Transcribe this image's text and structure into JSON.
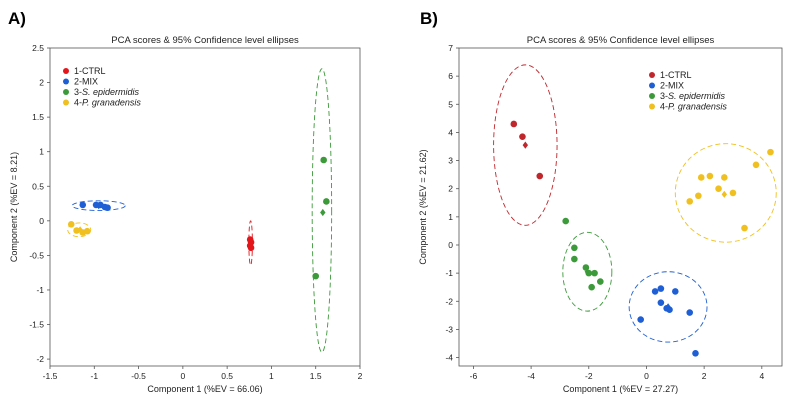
{
  "chart_data": [
    {
      "type": "scatter",
      "panel_label": "A)",
      "title": "PCA scores & 95% Confidence level ellipses",
      "xlabel": "Component 1 (%EV = 66.06)",
      "ylabel": "Component 2 (%EV = 8.21)",
      "xlim": [
        -1.5,
        2
      ],
      "ylim": [
        -2.1,
        2.5
      ],
      "xticks": [
        -1.5,
        -1,
        -0.5,
        0,
        0.5,
        1,
        1.5,
        2
      ],
      "yticks": [
        -2,
        -1.5,
        -1,
        -0.5,
        0,
        0.5,
        1,
        1.5,
        2,
        2.5
      ],
      "xtick_labels": [
        "-1.5",
        "-1",
        "-0.5",
        "0",
        "0.5",
        "1",
        "1.5",
        "2"
      ],
      "ytick_labels": [
        "-2",
        "-1.5",
        "-1",
        "-0.5",
        "0",
        "0.5",
        "1",
        "1.5",
        "2",
        "2.5"
      ],
      "grid": false,
      "legend_position": "top-left",
      "series": [
        {
          "name": "1-CTRL",
          "color": "#e3161c",
          "points": [
            [
              0.76,
              -0.27
            ],
            [
              0.77,
              -0.31
            ],
            [
              0.76,
              -0.36
            ],
            [
              0.77,
              -0.39
            ]
          ],
          "centroid": [
            0.765,
            -0.32
          ],
          "ellipse": {
            "cx": 0.765,
            "cy": -0.32,
            "rx": 0.02,
            "ry": 0.32,
            "angle": 0
          }
        },
        {
          "name": "2-MIX",
          "color": "#1f5fd6",
          "points": [
            [
              -1.13,
              0.23
            ],
            [
              -0.98,
              0.23
            ],
            [
              -0.93,
              0.23
            ],
            [
              -0.88,
              0.2
            ],
            [
              -0.85,
              0.19
            ]
          ],
          "centroid": [
            -0.95,
            0.22
          ],
          "ellipse": {
            "cx": -0.95,
            "cy": 0.22,
            "rx": 0.3,
            "ry": 0.07,
            "angle": 0
          }
        },
        {
          "name": "3-S. epidermidis",
          "color": "#3c9a3a",
          "points": [
            [
              1.59,
              0.88
            ],
            [
              1.62,
              0.28
            ],
            [
              1.5,
              -0.8
            ]
          ],
          "centroid": [
            1.58,
            0.12
          ],
          "ellipse": {
            "cx": 1.57,
            "cy": 0.15,
            "rx": 0.11,
            "ry": 2.05,
            "angle": 0
          }
        },
        {
          "name": "4-P. granadensis",
          "color": "#f0c020",
          "points": [
            [
              -1.26,
              -0.05
            ],
            [
              -1.2,
              -0.14
            ],
            [
              -1.13,
              -0.17
            ],
            [
              -1.08,
              -0.15
            ]
          ],
          "centroid": [
            -1.16,
            -0.13
          ],
          "ellipse": {
            "cx": -1.17,
            "cy": -0.13,
            "rx": 0.13,
            "ry": 0.1,
            "angle": 0
          }
        }
      ]
    },
    {
      "type": "scatter",
      "panel_label": "B)",
      "title": "PCA scores & 95% Confidence level ellipses",
      "xlabel": "Component 1 (%EV = 27.27)",
      "ylabel": "Component 2 (%EV = 21.62)",
      "xlim": [
        -6.5,
        4.7
      ],
      "ylim": [
        -4.3,
        7
      ],
      "xticks": [
        -6,
        -4,
        -2,
        0,
        2,
        4
      ],
      "yticks": [
        -4,
        -3,
        -2,
        -1,
        0,
        1,
        2,
        3,
        4,
        5,
        6,
        7
      ],
      "xtick_labels": [
        "-6",
        "-4",
        "-2",
        "0",
        "2",
        "4"
      ],
      "ytick_labels": [
        "-4",
        "-3",
        "-2",
        "-1",
        "0",
        "1",
        "2",
        "3",
        "4",
        "5",
        "6",
        "7"
      ],
      "grid": false,
      "legend_position": "top-right",
      "series": [
        {
          "name": "1-CTRL",
          "color": "#c0272d",
          "points": [
            [
              -4.6,
              4.3
            ],
            [
              -4.3,
              3.85
            ],
            [
              -3.7,
              2.45
            ]
          ],
          "centroid": [
            -4.2,
            3.55
          ],
          "ellipse": {
            "cx": -4.2,
            "cy": 3.55,
            "rx": 1.1,
            "ry": 2.85,
            "angle": 0
          }
        },
        {
          "name": "2-MIX",
          "color": "#1f5fd6",
          "points": [
            [
              -0.2,
              -2.65
            ],
            [
              0.3,
              -1.65
            ],
            [
              0.5,
              -1.55
            ],
            [
              0.5,
              -2.05
            ],
            [
              0.7,
              -2.25
            ],
            [
              0.8,
              -2.3
            ],
            [
              1.0,
              -1.65
            ],
            [
              1.5,
              -2.4
            ],
            [
              1.7,
              -3.85
            ]
          ],
          "centroid": [
            0.75,
            -2.2
          ],
          "ellipse": {
            "cx": 0.75,
            "cy": -2.2,
            "rx": 1.35,
            "ry": 1.25,
            "angle": 0
          }
        },
        {
          "name": "3-S. epidermidis",
          "color": "#3c9a3a",
          "points": [
            [
              -2.8,
              0.85
            ],
            [
              -2.5,
              -0.1
            ],
            [
              -2.5,
              -0.5
            ],
            [
              -2.1,
              -0.8
            ],
            [
              -2.0,
              -1.0
            ],
            [
              -1.9,
              -1.5
            ],
            [
              -1.8,
              -1.0
            ],
            [
              -1.6,
              -1.3
            ]
          ],
          "centroid": [
            -2.05,
            -0.95
          ],
          "ellipse": {
            "cx": -2.05,
            "cy": -0.95,
            "rx": 0.85,
            "ry": 1.4,
            "angle": 0
          }
        },
        {
          "name": "4-P. granadensis",
          "color": "#f0c020",
          "points": [
            [
              1.5,
              1.55
            ],
            [
              1.9,
              2.4
            ],
            [
              2.2,
              2.45
            ],
            [
              2.5,
              2.0
            ],
            [
              2.7,
              2.4
            ],
            [
              3.0,
              1.85
            ],
            [
              3.4,
              0.6
            ],
            [
              3.8,
              2.85
            ],
            [
              4.3,
              3.3
            ],
            [
              1.8,
              1.75
            ]
          ],
          "centroid": [
            2.7,
            1.8
          ],
          "ellipse": {
            "cx": 2.75,
            "cy": 1.85,
            "rx": 1.75,
            "ry": 1.75,
            "angle": 0
          }
        }
      ]
    }
  ]
}
